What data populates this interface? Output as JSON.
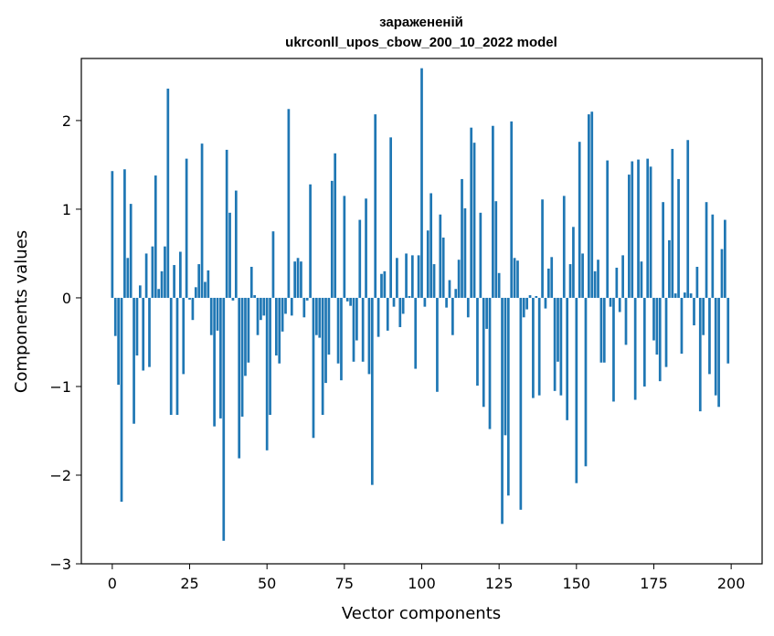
{
  "chart_data": {
    "type": "bar",
    "title": "заражененій",
    "subtitle": "ukrconll_upos_cbow_200_10_2022 model",
    "xlabel": "Vector components",
    "ylabel": "Components values",
    "xlim": [
      -10,
      210
    ],
    "ylim": [
      -3,
      2.7
    ],
    "xticks": [
      0,
      25,
      50,
      75,
      100,
      125,
      150,
      175,
      200
    ],
    "yticks": [
      -3,
      -2,
      -1,
      0,
      1,
      2
    ],
    "ytick_labels": [
      "−3",
      "−2",
      "−1",
      "0",
      "1",
      "2"
    ],
    "grid": false,
    "bar_color": "#1f77b4",
    "x": [
      0,
      1,
      2,
      3,
      4,
      5,
      6,
      7,
      8,
      9,
      10,
      11,
      12,
      13,
      14,
      15,
      16,
      17,
      18,
      19,
      20,
      21,
      22,
      23,
      24,
      25,
      26,
      27,
      28,
      29,
      30,
      31,
      32,
      33,
      34,
      35,
      36,
      37,
      38,
      39,
      40,
      41,
      42,
      43,
      44,
      45,
      46,
      47,
      48,
      49,
      50,
      51,
      52,
      53,
      54,
      55,
      56,
      57,
      58,
      59,
      60,
      61,
      62,
      63,
      64,
      65,
      66,
      67,
      68,
      69,
      70,
      71,
      72,
      73,
      74,
      75,
      76,
      77,
      78,
      79,
      80,
      81,
      82,
      83,
      84,
      85,
      86,
      87,
      88,
      89,
      90,
      91,
      92,
      93,
      94,
      95,
      96,
      97,
      98,
      99,
      100,
      101,
      102,
      103,
      104,
      105,
      106,
      107,
      108,
      109,
      110,
      111,
      112,
      113,
      114,
      115,
      116,
      117,
      118,
      119,
      120,
      121,
      122,
      123,
      124,
      125,
      126,
      127,
      128,
      129,
      130,
      131,
      132,
      133,
      134,
      135,
      136,
      137,
      138,
      139,
      140,
      141,
      142,
      143,
      144,
      145,
      146,
      147,
      148,
      149,
      150,
      151,
      152,
      153,
      154,
      155,
      156,
      157,
      158,
      159,
      160,
      161,
      162,
      163,
      164,
      165,
      166,
      167,
      168,
      169,
      170,
      171,
      172,
      173,
      174,
      175,
      176,
      177,
      178,
      179,
      180,
      181,
      182,
      183,
      184,
      185,
      186,
      187,
      188,
      189,
      190,
      191,
      192,
      193,
      194,
      195,
      196,
      197,
      198,
      199
    ],
    "values": [
      1.43,
      -0.43,
      -0.98,
      -2.3,
      1.45,
      0.45,
      1.06,
      -1.42,
      -0.65,
      0.14,
      -0.82,
      0.5,
      -0.78,
      0.58,
      1.38,
      0.1,
      0.3,
      0.58,
      2.36,
      -1.32,
      0.37,
      -1.32,
      0.52,
      -0.86,
      1.57,
      -0.02,
      -0.25,
      0.12,
      0.38,
      1.74,
      0.18,
      0.31,
      -0.42,
      -1.45,
      -0.37,
      -1.36,
      -2.74,
      1.67,
      0.96,
      -0.03,
      1.21,
      -1.81,
      -1.34,
      -0.88,
      -0.73,
      0.35,
      0.03,
      -0.42,
      -0.25,
      -0.2,
      -1.72,
      -1.32,
      0.75,
      -0.65,
      -0.74,
      -0.38,
      -0.18,
      2.13,
      -0.2,
      0.41,
      0.45,
      0.41,
      -0.22,
      -0.03,
      1.28,
      -1.58,
      -0.42,
      -0.45,
      -1.32,
      -0.96,
      -0.64,
      1.32,
      1.63,
      -0.74,
      -0.93,
      1.15,
      -0.04,
      -0.09,
      -0.72,
      -0.48,
      0.88,
      -0.72,
      1.12,
      -0.86,
      -2.11,
      2.07,
      -0.44,
      0.27,
      0.3,
      -0.37,
      1.81,
      -0.1,
      0.45,
      -0.33,
      -0.18,
      0.5,
      0.02,
      0.48,
      -0.8,
      0.48,
      2.59,
      -0.1,
      0.76,
      1.18,
      0.38,
      -1.06,
      0.94,
      0.68,
      -0.11,
      0.2,
      -0.42,
      0.1,
      0.43,
      1.34,
      1.01,
      -0.22,
      1.92,
      1.75,
      -0.99,
      0.96,
      -1.23,
      -0.35,
      -1.48,
      1.94,
      1.09,
      0.28,
      -2.55,
      -1.55,
      -2.23,
      1.99,
      0.45,
      0.42,
      -2.39,
      -0.22,
      -0.13,
      0.03,
      -1.13,
      0.02,
      -1.1,
      1.11,
      -0.12,
      0.33,
      0.46,
      -1.05,
      -0.72,
      -1.1,
      1.15,
      -1.38,
      0.38,
      0.8,
      -2.09,
      1.76,
      0.5,
      -1.9,
      2.07,
      2.1,
      0.3,
      0.43,
      -0.73,
      -0.73,
      1.55,
      -0.1,
      -1.17,
      0.34,
      -0.16,
      0.48,
      -0.53,
      1.39,
      1.54,
      -1.15,
      1.56,
      0.41,
      -1.0,
      1.57,
      1.48,
      -0.48,
      -0.64,
      -0.94,
      1.08,
      -0.78,
      0.65,
      1.68,
      0.05,
      1.34,
      -0.63,
      0.06,
      1.78,
      0.05,
      -0.31,
      0.35,
      -1.28,
      -0.42,
      1.08,
      -0.86,
      0.94,
      -1.1,
      -1.23,
      0.55,
      0.88,
      -0.74
    ]
  }
}
